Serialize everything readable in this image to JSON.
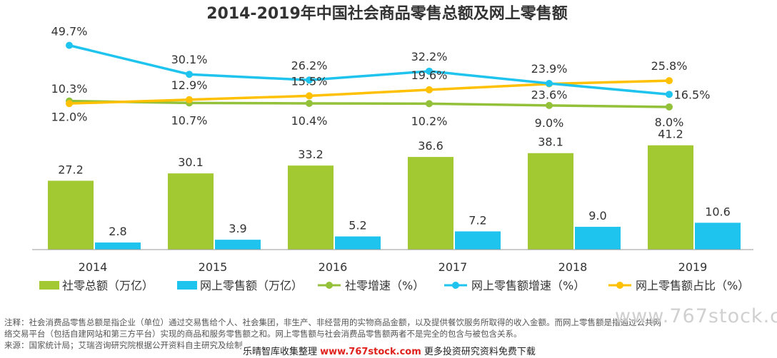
{
  "chart_data": {
    "type": "bar",
    "title": "2014-2019年中国社会商品零售总额及网上零售额",
    "categories": [
      "2014",
      "2015",
      "2016",
      "2017",
      "2018",
      "2019"
    ],
    "bar_series": [
      {
        "name": "社零总额（万亿）",
        "color": "#a3c932",
        "values": [
          27.2,
          30.1,
          33.2,
          36.6,
          38.1,
          41.2
        ],
        "labels": [
          "27.2",
          "30.1",
          "33.2",
          "36.6",
          "38.1",
          "41.2"
        ]
      },
      {
        "name": "网上零售额（万亿）",
        "color": "#1ec4ee",
        "values": [
          2.8,
          3.9,
          5.2,
          7.2,
          9.0,
          10.6
        ],
        "labels": [
          "2.8",
          "3.9",
          "5.2",
          "7.2",
          "9.0",
          "10.6"
        ]
      }
    ],
    "line_series": [
      {
        "name": "社零增速（%）",
        "color": "#93c13a",
        "values": [
          12.0,
          10.7,
          10.4,
          10.2,
          9.0,
          8.0
        ],
        "labels": [
          "12.0%",
          "10.7%",
          "10.4%",
          "10.2%",
          "9.0%",
          "8.0%"
        ]
      },
      {
        "name": "网上零售额增速（%）",
        "color": "#1ec4ee",
        "values": [
          49.7,
          30.1,
          26.2,
          32.2,
          23.9,
          16.5
        ],
        "labels": [
          "49.7%",
          "30.1%",
          "26.2%",
          "32.2%",
          "23.9%",
          "16.5%"
        ]
      },
      {
        "name": "网上零售额占比（%）",
        "color": "#ffc000",
        "values": [
          10.3,
          12.9,
          15.5,
          19.6,
          23.6,
          25.8
        ],
        "labels": [
          "10.3%",
          "12.9%",
          "15.5%",
          "19.6%",
          "23.6%",
          "25.8%"
        ]
      }
    ],
    "legend_position": "bottom",
    "grid": false
  },
  "notes": {
    "line1": "注释：社会消费品零售总额是指企业（单位）通过交易售给个人、社会集团，非生产、非经营用的实物商品金额，以及提供餐饮服务所取得的收入金额。而网上零售额是指通过公共网",
    "line2": "络交易平台（包括自建网站和第三方平台）实现的商品和服务零售额之和。网上零售额与社会消费品零售额两者不是完全的包含与被包含关系。",
    "line3": "来源：国家统计局；艾瑞咨询研究院根据公开资料自主研究及绘制。"
  },
  "watermark": "www.767stock.c",
  "promo": {
    "prefix": "乐晴智库收集整理 ",
    "site": "www.767stock.com",
    "suffix": " 更多投资研究资料免费下载"
  }
}
